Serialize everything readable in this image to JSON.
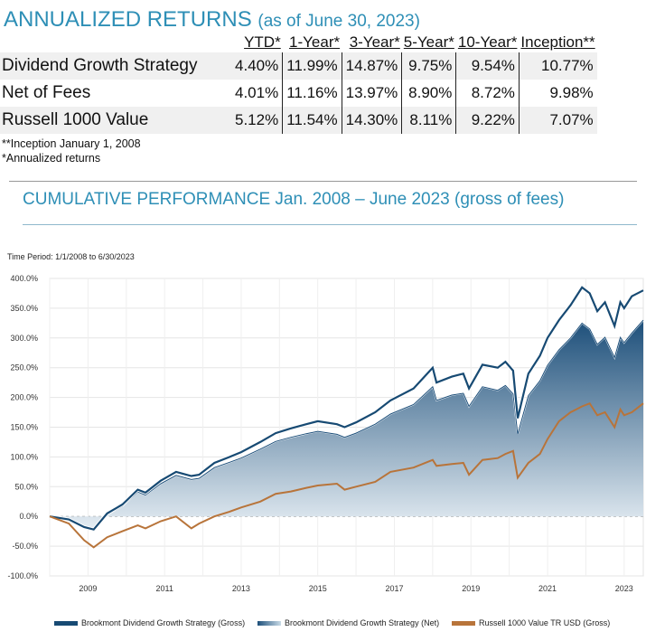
{
  "header": {
    "title": "ANNUALIZED RETURNS",
    "title_sub": "(as of June 30, 2023)"
  },
  "returns_table": {
    "columns": [
      "YTD*",
      "1-Year*",
      "3-Year*",
      "5-Year*",
      "10-Year*",
      "Inception**"
    ],
    "rows": [
      {
        "name": "Dividend Growth Strategy",
        "values": [
          "4.40%",
          "11.99%",
          "14.87%",
          "9.75%",
          "9.54%",
          "10.77%"
        ]
      },
      {
        "name": "Net of Fees",
        "values": [
          "4.01%",
          "11.16%",
          "13.97%",
          "8.90%",
          "8.72%",
          "9.98%"
        ]
      },
      {
        "name": "Russell 1000 Value",
        "values": [
          "5.12%",
          "11.54%",
          "14.30%",
          "8.11%",
          "9.22%",
          "7.07%"
        ]
      }
    ]
  },
  "notes": {
    "inception": "**Inception January 1, 2008",
    "annualized": "*Annualized returns"
  },
  "cumulative_title": "CUMULATIVE PERFORMANCE Jan. 2008 – June 2023 (gross of fees)",
  "colors": {
    "title": "#2e8fb6",
    "gross": "#174a73",
    "net_dark": "#1d4f7a",
    "net_light": "#dde8ef",
    "russell": "#b8743a"
  },
  "chart_data": {
    "type": "area",
    "time_period": "Time Period: 1/1/2008 to 6/30/2023",
    "y_ticks": [
      "400.0%",
      "350.0%",
      "300.0%",
      "250.0%",
      "200.0%",
      "150.0%",
      "100.0%",
      "50.0%",
      "0.0%",
      "-50.0%",
      "-100.0%"
    ],
    "x_ticks": [
      "2009",
      "2011",
      "2013",
      "2015",
      "2017",
      "2019",
      "2021",
      "2023"
    ],
    "ylim": [
      -100,
      400
    ],
    "xlim": [
      2008.0,
      2023.5
    ],
    "grid": true,
    "legend_position": "bottom",
    "series": [
      {
        "name": "Brookmont Dividend Growth Strategy (Gross)",
        "x": [
          2008.0,
          2008.5,
          2008.9,
          2009.15,
          2009.5,
          2009.9,
          2010.3,
          2010.5,
          2010.9,
          2011.3,
          2011.7,
          2011.9,
          2012.3,
          2012.7,
          2013.0,
          2013.5,
          2013.9,
          2014.3,
          2014.7,
          2015.0,
          2015.5,
          2015.7,
          2016.0,
          2016.5,
          2016.9,
          2017.5,
          2018.0,
          2018.1,
          2018.5,
          2018.8,
          2018.95,
          2019.3,
          2019.7,
          2019.9,
          2020.1,
          2020.22,
          2020.5,
          2020.8,
          2021.0,
          2021.3,
          2021.6,
          2021.9,
          2022.1,
          2022.3,
          2022.5,
          2022.75,
          2022.9,
          2023.0,
          2023.2,
          2023.5
        ],
        "values": [
          0,
          -5,
          -18,
          -22,
          5,
          20,
          45,
          40,
          60,
          75,
          68,
          70,
          90,
          100,
          108,
          125,
          140,
          148,
          155,
          160,
          155,
          150,
          158,
          175,
          195,
          215,
          250,
          225,
          235,
          240,
          215,
          255,
          250,
          260,
          245,
          165,
          240,
          270,
          300,
          330,
          355,
          385,
          375,
          345,
          360,
          320,
          360,
          350,
          370,
          380
        ]
      },
      {
        "name": "Brookmont Dividend Growth Strategy (Net)",
        "x": [
          2008.0,
          2008.5,
          2008.9,
          2009.15,
          2009.5,
          2009.9,
          2010.3,
          2010.5,
          2010.9,
          2011.3,
          2011.7,
          2011.9,
          2012.3,
          2012.7,
          2013.0,
          2013.5,
          2013.9,
          2014.3,
          2014.7,
          2015.0,
          2015.5,
          2015.7,
          2016.0,
          2016.5,
          2016.9,
          2017.5,
          2018.0,
          2018.1,
          2018.5,
          2018.8,
          2018.95,
          2019.3,
          2019.7,
          2019.9,
          2020.1,
          2020.22,
          2020.5,
          2020.8,
          2021.0,
          2021.3,
          2021.6,
          2021.9,
          2022.1,
          2022.3,
          2022.5,
          2022.75,
          2022.9,
          2023.0,
          2023.2,
          2023.5
        ],
        "values": [
          0,
          -6,
          -19,
          -23,
          3,
          17,
          41,
          36,
          55,
          69,
          62,
          64,
          82,
          91,
          98,
          113,
          126,
          133,
          139,
          143,
          138,
          133,
          140,
          155,
          172,
          188,
          218,
          195,
          204,
          207,
          185,
          218,
          212,
          220,
          206,
          138,
          203,
          228,
          254,
          280,
          300,
          325,
          315,
          289,
          301,
          267,
          301,
          292,
          308,
          330
        ]
      },
      {
        "name": "Russell 1000 Value TR USD (Gross)",
        "x": [
          2008.0,
          2008.5,
          2008.9,
          2009.15,
          2009.5,
          2009.9,
          2010.3,
          2010.5,
          2010.9,
          2011.3,
          2011.7,
          2011.9,
          2012.3,
          2012.7,
          2013.0,
          2013.5,
          2013.9,
          2014.3,
          2014.7,
          2015.0,
          2015.5,
          2015.7,
          2016.0,
          2016.5,
          2016.9,
          2017.5,
          2018.0,
          2018.1,
          2018.5,
          2018.8,
          2018.95,
          2019.3,
          2019.7,
          2019.9,
          2020.1,
          2020.22,
          2020.5,
          2020.8,
          2021.0,
          2021.3,
          2021.6,
          2021.9,
          2022.1,
          2022.3,
          2022.5,
          2022.75,
          2022.9,
          2023.0,
          2023.2,
          2023.5
        ],
        "values": [
          0,
          -12,
          -40,
          -52,
          -35,
          -25,
          -15,
          -20,
          -8,
          0,
          -20,
          -12,
          0,
          8,
          15,
          25,
          38,
          42,
          48,
          52,
          55,
          45,
          50,
          58,
          75,
          82,
          95,
          85,
          88,
          90,
          70,
          95,
          98,
          105,
          110,
          65,
          90,
          105,
          130,
          160,
          175,
          185,
          190,
          170,
          175,
          150,
          180,
          170,
          175,
          190
        ]
      }
    ]
  },
  "legend": [
    {
      "label": "Brookmont Dividend Growth Strategy (Gross)"
    },
    {
      "label": "Brookmont Dividend Growth Strategy (Net)"
    },
    {
      "label": "Russell 1000 Value TR USD (Gross)"
    }
  ]
}
